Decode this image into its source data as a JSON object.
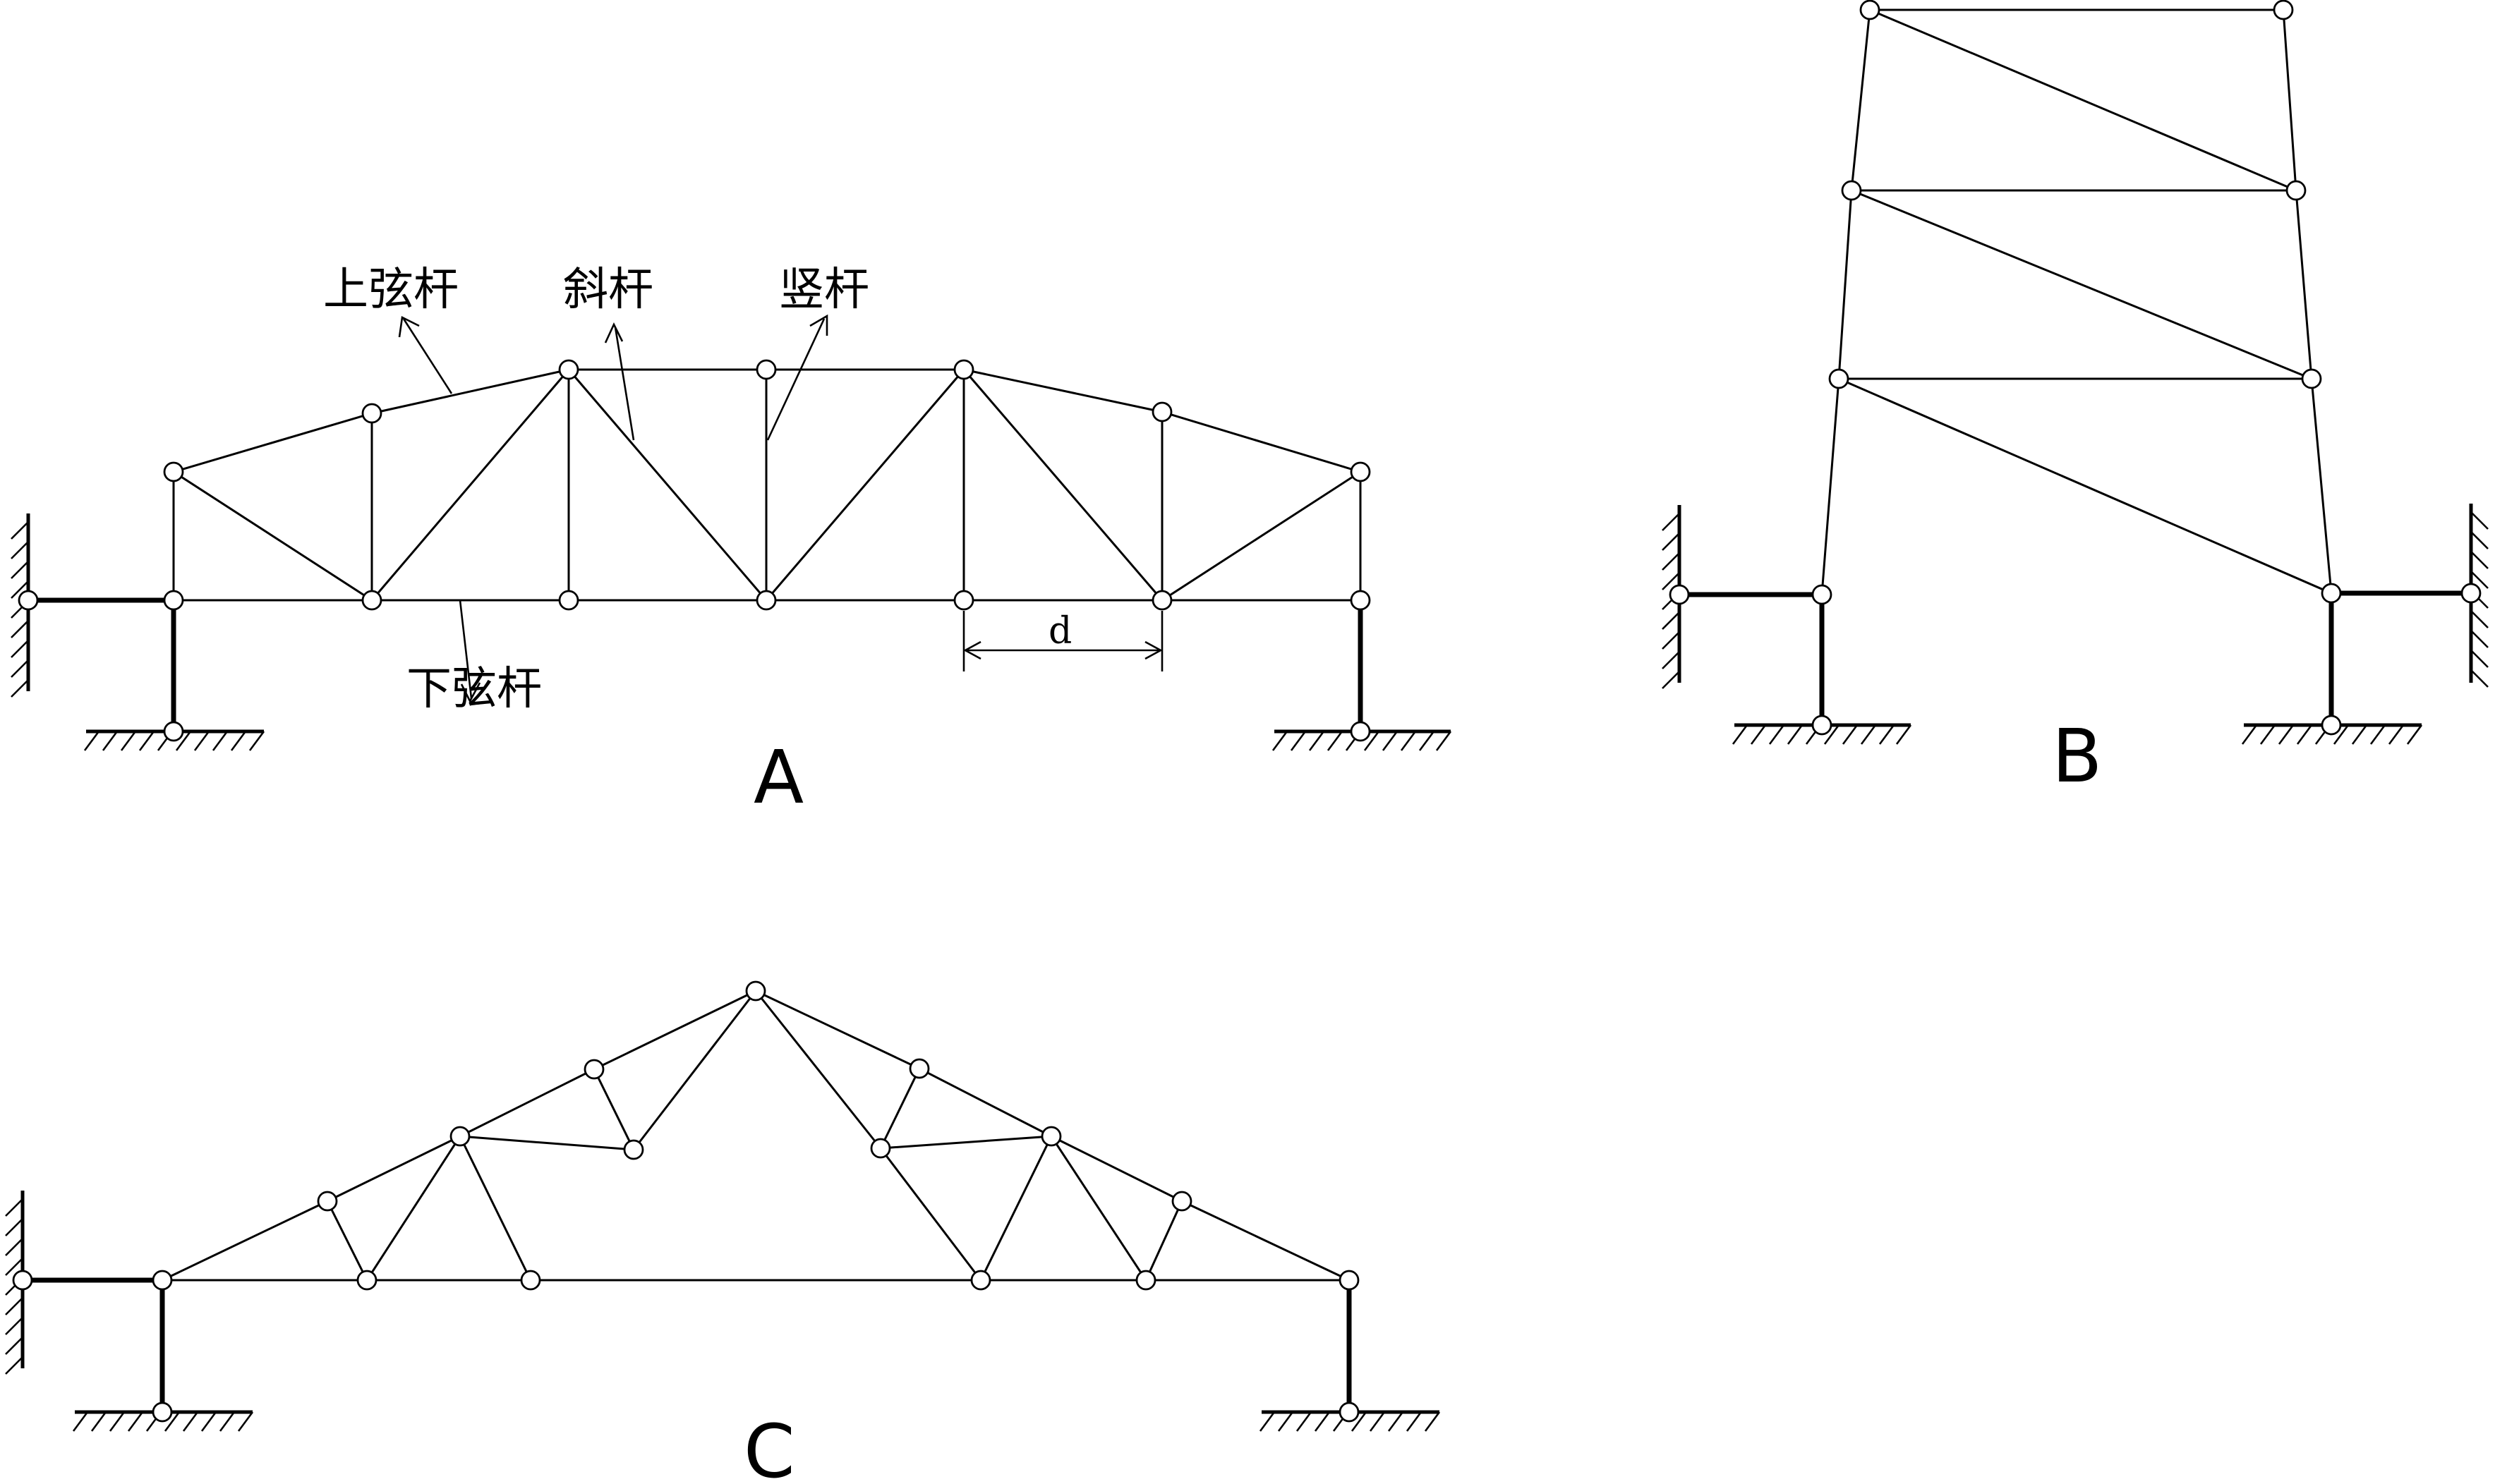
{
  "figure_labels": {
    "a": "A",
    "b": "B",
    "c": "C"
  },
  "member_labels": {
    "top_chord": "上弦杆",
    "diagonal": "斜杆",
    "vertical": "竖杆",
    "bottom_chord": "下弦杆"
  },
  "dimension": {
    "panel_length": "d"
  }
}
